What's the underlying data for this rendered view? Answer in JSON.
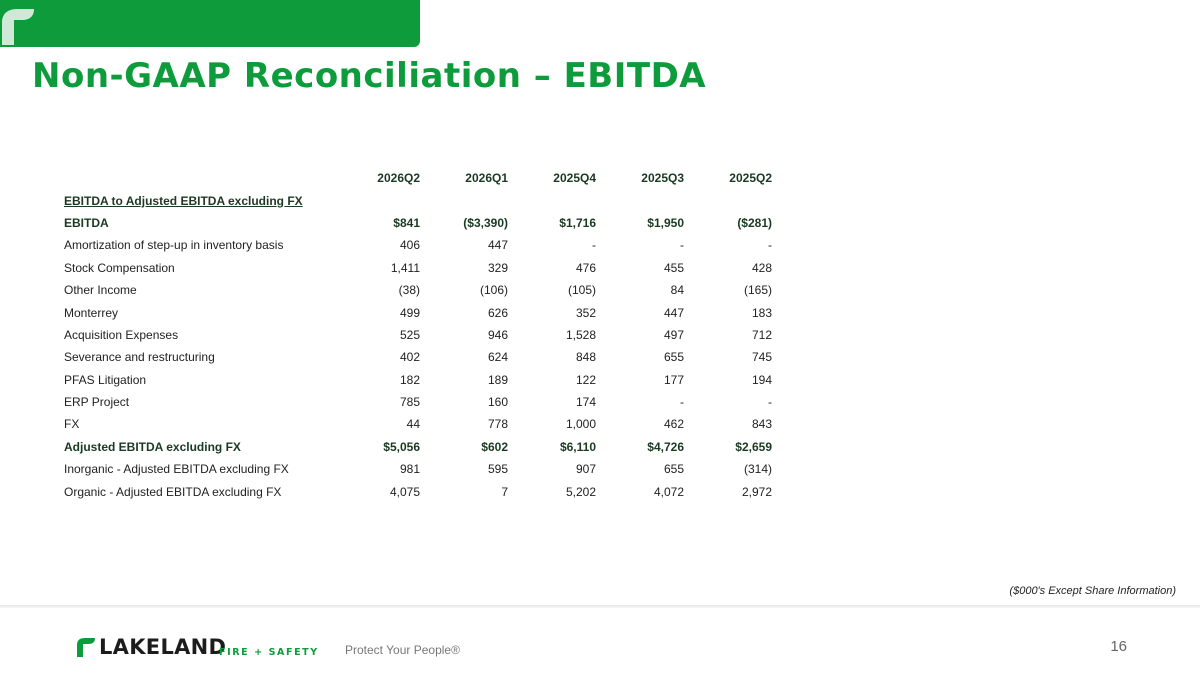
{
  "header": {
    "title": "Non-GAAP Reconciliation – EBITDA",
    "accent_color": "#0d9b3c"
  },
  "table": {
    "columns": [
      "2026Q2",
      "2026Q1",
      "2025Q4",
      "2025Q3",
      "2025Q2"
    ],
    "section_label": "EBITDA to Adjusted EBITDA excluding FX",
    "rows": [
      {
        "label": "EBITDA",
        "bold": true,
        "values": [
          "$841",
          "($3,390)",
          "$1,716",
          "$1,950",
          "($281)"
        ]
      },
      {
        "label": "Amortization of step-up in inventory basis",
        "bold": false,
        "values": [
          "406",
          "447",
          "-",
          "-",
          "-"
        ]
      },
      {
        "label": "Stock Compensation",
        "bold": false,
        "values": [
          "1,411",
          "329",
          "476",
          "455",
          "428"
        ]
      },
      {
        "label": "Other Income",
        "bold": false,
        "values": [
          "(38)",
          "(106)",
          "(105)",
          "84",
          "(165)"
        ]
      },
      {
        "label": "Monterrey",
        "bold": false,
        "values": [
          "499",
          "626",
          "352",
          "447",
          "183"
        ]
      },
      {
        "label": "Acquisition Expenses",
        "bold": false,
        "values": [
          "525",
          "946",
          "1,528",
          "497",
          "712"
        ]
      },
      {
        "label": "Severance and restructuring",
        "bold": false,
        "values": [
          "402",
          "624",
          "848",
          "655",
          "745"
        ]
      },
      {
        "label": "PFAS Litigation",
        "bold": false,
        "values": [
          "182",
          "189",
          "122",
          "177",
          "194"
        ]
      },
      {
        "label": "ERP Project",
        "bold": false,
        "values": [
          "785",
          "160",
          "174",
          "-",
          "-"
        ]
      },
      {
        "label": "FX",
        "bold": false,
        "values": [
          "44",
          "778",
          "1,000",
          "462",
          "843"
        ]
      },
      {
        "label": "Adjusted EBITDA excluding FX",
        "bold": true,
        "values": [
          "$5,056",
          "$602",
          "$6,110",
          "$4,726",
          "$2,659"
        ]
      },
      {
        "label": "Inorganic - Adjusted EBITDA excluding FX",
        "bold": false,
        "values": [
          "981",
          "595",
          "907",
          "655",
          "(314)"
        ]
      },
      {
        "label": "Organic - Adjusted EBITDA excluding FX",
        "bold": false,
        "values": [
          "4,075",
          "7",
          "5,202",
          "4,072",
          "2,972"
        ]
      }
    ]
  },
  "note": "($000's Except Share Information)",
  "footer": {
    "logo_text": "LAKELAND",
    "logo_subtext": "FIRE + SAFETY",
    "logo_icon": "lakeland-leaf-icon",
    "tagline": "Protect Your People®",
    "page_number": "16"
  }
}
